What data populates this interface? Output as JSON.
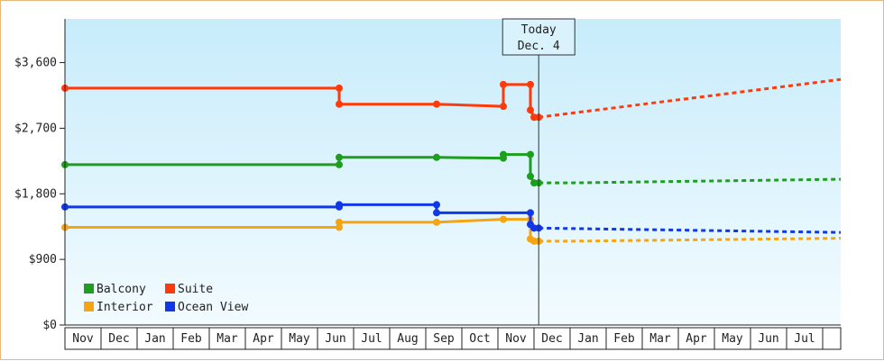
{
  "chart_data": {
    "type": "line",
    "yticks": [
      "$0",
      "$900",
      "$1,800",
      "$2,700",
      "$3,600"
    ],
    "ylim": [
      0,
      4200
    ],
    "xlim": [
      0,
      21.5
    ],
    "months": [
      "Nov",
      "Dec",
      "Jan",
      "Feb",
      "Mar",
      "Apr",
      "May",
      "Jun",
      "Jul",
      "Aug",
      "Sep",
      "Oct",
      "Nov",
      "Dec",
      "Jan",
      "Feb",
      "Mar",
      "Apr",
      "May",
      "Jun",
      "Jul"
    ],
    "today": {
      "line1": "Today",
      "line2": "Dec. 4",
      "x": 13.13
    },
    "colors": {
      "Balcony": "#1e9e1e",
      "Suite": "#ff3a0a",
      "Interior": "#f5a412",
      "Ocean View": "#1038e8"
    },
    "series": [
      {
        "name": "Balcony",
        "points": [
          [
            0,
            2200
          ],
          [
            7.6,
            2200
          ],
          [
            7.6,
            2300
          ],
          [
            10.3,
            2300
          ],
          [
            12.15,
            2290
          ],
          [
            12.15,
            2340
          ],
          [
            12.9,
            2340
          ],
          [
            12.9,
            2040
          ],
          [
            13,
            1950
          ],
          [
            13.13,
            1950
          ]
        ],
        "forecast": [
          [
            13.13,
            1950
          ],
          [
            14,
            1950
          ],
          [
            21.5,
            2000
          ]
        ]
      },
      {
        "name": "Suite",
        "points": [
          [
            0,
            3250
          ],
          [
            7.6,
            3250
          ],
          [
            7.6,
            3030
          ],
          [
            10.3,
            3030
          ],
          [
            12.15,
            3000
          ],
          [
            12.15,
            3300
          ],
          [
            12.9,
            3300
          ],
          [
            12.9,
            2950
          ],
          [
            13,
            2850
          ],
          [
            13.13,
            2850
          ]
        ],
        "forecast": [
          [
            13.13,
            2850
          ],
          [
            21.5,
            3370
          ]
        ]
      },
      {
        "name": "Interior",
        "points": [
          [
            0,
            1340
          ],
          [
            7.6,
            1340
          ],
          [
            7.6,
            1410
          ],
          [
            10.3,
            1410
          ],
          [
            12.15,
            1450
          ],
          [
            12.9,
            1450
          ],
          [
            12.9,
            1180
          ],
          [
            13,
            1150
          ],
          [
            13.13,
            1150
          ]
        ],
        "forecast": [
          [
            13.13,
            1150
          ],
          [
            14,
            1150
          ],
          [
            21.5,
            1190
          ]
        ]
      },
      {
        "name": "Ocean View",
        "points": [
          [
            0,
            1620
          ],
          [
            7.6,
            1620
          ],
          [
            7.6,
            1650
          ],
          [
            10.3,
            1650
          ],
          [
            10.3,
            1540
          ],
          [
            12.15,
            1540
          ],
          [
            12.9,
            1540
          ],
          [
            12.9,
            1380
          ],
          [
            13,
            1330
          ],
          [
            13.13,
            1330
          ]
        ],
        "forecast": [
          [
            13.13,
            1330
          ],
          [
            21.5,
            1270
          ]
        ]
      }
    ],
    "legend": [
      {
        "name": "Balcony"
      },
      {
        "name": "Suite"
      },
      {
        "name": "Interior"
      },
      {
        "name": "Ocean View"
      }
    ],
    "grid": false,
    "background": "gradient light blue"
  }
}
